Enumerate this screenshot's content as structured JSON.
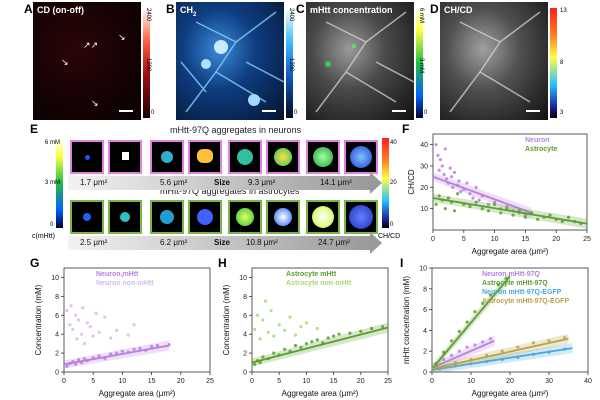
{
  "panels": {
    "A": {
      "letter": "A",
      "title": "CD (on-off)",
      "cbar_ticks": [
        "2400",
        "1200",
        "0"
      ]
    },
    "B": {
      "letter": "B",
      "title": "CH",
      "title_sub": "2",
      "cbar_ticks": [
        "2400",
        "1200",
        "0"
      ]
    },
    "C": {
      "letter": "C",
      "title": "mHtt concentration",
      "cbar_ticks": [
        "6 mM",
        "3 mM",
        "0"
      ]
    },
    "D": {
      "letter": "D",
      "title": "CH/CD",
      "cbar_ticks": [
        "13",
        "8",
        "3"
      ]
    }
  },
  "panel_e": {
    "letter": "E",
    "neurons_title": "mHtt-97Q aggregates in neurons",
    "astro_title": "mHtt-97Q aggregates in astrocytes",
    "left_cbar": [
      "6 mM",
      "3 mM",
      "0"
    ],
    "left_cbar_axis": "c(mHtt)",
    "right_cbar": [
      "40",
      "20",
      "0"
    ],
    "right_cbar_axis": "CH/CD",
    "neuron_sizes": [
      "1.7 μm²",
      "5.6 μm²",
      "Size",
      "9.3 μm²",
      "14.1 μm²"
    ],
    "astro_sizes": [
      "2.5 μm²",
      "6.2 μm²",
      "Size",
      "10.8 μm²",
      "24.7 μm²"
    ]
  },
  "chart_data": [
    {
      "id": "F",
      "letter": "F",
      "type": "scatter",
      "xlabel": "Aggregate area (μm²)",
      "ylabel": "CH/CD",
      "xlim": [
        0,
        25
      ],
      "ylim": [
        0,
        45
      ],
      "xticks": [
        0,
        5,
        10,
        15,
        20,
        25
      ],
      "yticks": [
        10,
        20,
        30,
        40
      ],
      "series": [
        {
          "name": "Neuron",
          "color": "#b87fe0",
          "points": [
            [
              0.5,
              40
            ],
            [
              0.8,
              35
            ],
            [
              1.0,
              28
            ],
            [
              1.2,
              33
            ],
            [
              1.5,
              30
            ],
            [
              1.8,
              26
            ],
            [
              2.0,
              38
            ],
            [
              2.2,
              24
            ],
            [
              2.5,
              22
            ],
            [
              2.8,
              29
            ],
            [
              3.0,
              25
            ],
            [
              3.2,
              20
            ],
            [
              3.5,
              27
            ],
            [
              4.0,
              21
            ],
            [
              4.2,
              23
            ],
            [
              4.5,
              18
            ],
            [
              5.0,
              19
            ],
            [
              5.5,
              22
            ],
            [
              6.0,
              17
            ],
            [
              6.5,
              15
            ],
            [
              7.0,
              20
            ],
            [
              7.5,
              14
            ],
            [
              8.0,
              16
            ],
            [
              9.0,
              12
            ],
            [
              10.0,
              13
            ],
            [
              11.0,
              10
            ],
            [
              12.0,
              11
            ],
            [
              13.0,
              9
            ],
            [
              14.0,
              8
            ],
            [
              15.0,
              7
            ]
          ],
          "fit": [
            [
              0,
              25
            ],
            [
              16,
              8
            ]
          ]
        },
        {
          "name": "Astrocyte",
          "color": "#5a9e2f",
          "points": [
            [
              0.5,
              12
            ],
            [
              1.0,
              16
            ],
            [
              1.5,
              14
            ],
            [
              2.0,
              10
            ],
            [
              2.5,
              15
            ],
            [
              3.0,
              13
            ],
            [
              3.5,
              9
            ],
            [
              4.0,
              17
            ],
            [
              5.0,
              12
            ],
            [
              6.0,
              11
            ],
            [
              7.0,
              13
            ],
            [
              8.0,
              10
            ],
            [
              9.0,
              9
            ],
            [
              10.0,
              12
            ],
            [
              11.0,
              8
            ],
            [
              12.0,
              10
            ],
            [
              13.0,
              7
            ],
            [
              14.0,
              9
            ],
            [
              15.0,
              6
            ],
            [
              16.0,
              8
            ],
            [
              17.0,
              5
            ],
            [
              18.0,
              6
            ],
            [
              19.0,
              7
            ],
            [
              20.0,
              5
            ],
            [
              21.0,
              4
            ],
            [
              22.0,
              6
            ],
            [
              23.0,
              4
            ],
            [
              24.0,
              3
            ]
          ],
          "fit": [
            [
              0,
              15
            ],
            [
              25,
              3
            ]
          ]
        }
      ]
    },
    {
      "id": "G",
      "letter": "G",
      "type": "scatter",
      "xlabel": "Aggregate area (μm²)",
      "ylabel": "Concentration (mM)",
      "xlim": [
        0,
        25
      ],
      "ylim": [
        0,
        11
      ],
      "xticks": [
        0,
        5,
        10,
        15,
        20,
        25
      ],
      "yticks": [
        0,
        2,
        4,
        6,
        8,
        10
      ],
      "series": [
        {
          "name": "Neuron mHtt",
          "color": "#b87fe0",
          "points": [
            [
              0.5,
              0.6
            ],
            [
              1.0,
              0.9
            ],
            [
              1.5,
              1.1
            ],
            [
              2.0,
              0.8
            ],
            [
              2.5,
              1.3
            ],
            [
              3.0,
              1.0
            ],
            [
              3.5,
              1.4
            ],
            [
              4.0,
              1.2
            ],
            [
              5.0,
              1.5
            ],
            [
              6.0,
              1.7
            ],
            [
              7.0,
              1.4
            ],
            [
              8.0,
              1.9
            ],
            [
              9.0,
              2.0
            ],
            [
              10.0,
              2.2
            ],
            [
              11.0,
              2.1
            ],
            [
              12.0,
              2.4
            ],
            [
              13.0,
              2.5
            ],
            [
              14.0,
              2.3
            ],
            [
              15.0,
              2.7
            ],
            [
              16.0,
              2.8
            ],
            [
              18.0,
              2.9
            ]
          ],
          "fit": [
            [
              0,
              0.8
            ],
            [
              18,
              2.8
            ]
          ]
        },
        {
          "name": "Neuron non-mHtt",
          "color": "#d8b8f0",
          "points": [
            [
              0.5,
              6.5
            ],
            [
              1.0,
              5.0
            ],
            [
              1.2,
              7.0
            ],
            [
              1.5,
              4.5
            ],
            [
              2.0,
              6.0
            ],
            [
              2.2,
              3.5
            ],
            [
              2.5,
              5.5
            ],
            [
              3.0,
              4.0
            ],
            [
              3.2,
              6.8
            ],
            [
              3.5,
              3.0
            ],
            [
              4.0,
              5.2
            ],
            [
              4.5,
              4.8
            ],
            [
              5.0,
              3.8
            ],
            [
              5.5,
              6.2
            ],
            [
              6.0,
              4.2
            ],
            [
              7.0,
              5.8
            ],
            [
              8.0,
              3.6
            ],
            [
              9.0,
              4.4
            ],
            [
              10.0,
              10.2
            ],
            [
              11.0,
              3.9
            ],
            [
              12.0,
              5.0
            ]
          ]
        }
      ]
    },
    {
      "id": "H",
      "letter": "H",
      "type": "scatter",
      "xlabel": "Aggregate area (μm²)",
      "ylabel": "Concentration (mM)",
      "xlim": [
        0,
        25
      ],
      "ylim": [
        0,
        11
      ],
      "xticks": [
        0,
        5,
        10,
        15,
        20,
        25
      ],
      "yticks": [
        0,
        2,
        4,
        6,
        8,
        10
      ],
      "series": [
        {
          "name": "Astrocyte mHtt",
          "color": "#5a9e2f",
          "points": [
            [
              0.5,
              0.8
            ],
            [
              1.0,
              1.2
            ],
            [
              1.5,
              1.0
            ],
            [
              2.0,
              1.6
            ],
            [
              3.0,
              1.4
            ],
            [
              4.0,
              2.0
            ],
            [
              5.0,
              1.8
            ],
            [
              6.0,
              2.4
            ],
            [
              7.0,
              2.2
            ],
            [
              8.0,
              2.8
            ],
            [
              9.0,
              2.6
            ],
            [
              10.0,
              3.0
            ],
            [
              11.0,
              3.2
            ],
            [
              12.0,
              3.4
            ],
            [
              13.0,
              3.1
            ],
            [
              14.0,
              3.6
            ],
            [
              15.0,
              3.8
            ],
            [
              16.0,
              4.0
            ],
            [
              18.0,
              4.1
            ],
            [
              20.0,
              4.3
            ],
            [
              22.0,
              4.6
            ],
            [
              24.0,
              4.8
            ]
          ],
          "fit": [
            [
              0,
              1.0
            ],
            [
              25,
              4.7
            ]
          ]
        },
        {
          "name": "Astrocyte non-mHtt",
          "color": "#a8d878",
          "points": [
            [
              0.5,
              4.5
            ],
            [
              1.0,
              6.0
            ],
            [
              1.5,
              3.5
            ],
            [
              2.0,
              5.5
            ],
            [
              2.5,
              7.5
            ],
            [
              3.0,
              4.2
            ],
            [
              3.5,
              6.5
            ],
            [
              4.0,
              3.8
            ],
            [
              5.0,
              5.0
            ],
            [
              6.0,
              4.4
            ],
            [
              7.0,
              5.8
            ],
            [
              8.0,
              3.9
            ],
            [
              9.0,
              4.8
            ],
            [
              10.0,
              5.2
            ],
            [
              12.0,
              4.6
            ]
          ]
        }
      ]
    },
    {
      "id": "I",
      "letter": "I",
      "type": "scatter",
      "xlabel": "Aggregate area (μm²)",
      "ylabel": "mHtt concentration (mM)",
      "xlim": [
        0,
        40
      ],
      "ylim": [
        0,
        10
      ],
      "xticks": [
        0,
        10,
        20,
        30,
        40
      ],
      "yticks": [
        0,
        2,
        4,
        6,
        8,
        10
      ],
      "series": [
        {
          "name": "Neuron mHtt-97Q",
          "color": "#b87fe0",
          "points": [
            [
              1,
              0.6
            ],
            [
              3,
              1.2
            ],
            [
              5,
              1.6
            ],
            [
              7,
              2.0
            ],
            [
              9,
              2.4
            ],
            [
              11,
              2.6
            ],
            [
              13,
              2.9
            ],
            [
              15,
              3.2
            ]
          ],
          "fit": [
            [
              0,
              0.4
            ],
            [
              16,
              3.0
            ]
          ]
        },
        {
          "name": "Astrocyte mHtt-97Q",
          "color": "#5a9e2f",
          "points": [
            [
              1,
              0.8
            ],
            [
              3,
              1.9
            ],
            [
              5,
              3.0
            ],
            [
              7,
              3.9
            ],
            [
              9,
              4.8
            ],
            [
              11,
              5.8
            ],
            [
              13,
              6.6
            ],
            [
              15,
              7.4
            ],
            [
              17,
              8.4
            ],
            [
              19,
              9.0
            ]
          ],
          "fit": [
            [
              0,
              0.3
            ],
            [
              20,
              9.2
            ]
          ]
        },
        {
          "name": "Neuron mHtt-97Q-EGFP",
          "color": "#4aa8e0",
          "points": [
            [
              2,
              0.3
            ],
            [
              6,
              0.6
            ],
            [
              10,
              0.8
            ],
            [
              14,
              1.0
            ],
            [
              18,
              1.2
            ],
            [
              22,
              1.4
            ],
            [
              26,
              1.7
            ],
            [
              30,
              1.9
            ],
            [
              34,
              2.2
            ]
          ],
          "fit": [
            [
              0,
              0.2
            ],
            [
              36,
              2.3
            ]
          ]
        },
        {
          "name": "Astrocyte mHtt-97Q-EGFP",
          "color": "#b9a34a",
          "points": [
            [
              2,
              0.4
            ],
            [
              6,
              0.9
            ],
            [
              10,
              1.2
            ],
            [
              14,
              1.6
            ],
            [
              18,
              2.0
            ],
            [
              22,
              2.4
            ],
            [
              26,
              2.8
            ],
            [
              30,
              3.0
            ],
            [
              34,
              3.3
            ]
          ],
          "fit": [
            [
              0,
              0.3
            ],
            [
              35,
              3.2
            ]
          ]
        }
      ]
    }
  ]
}
